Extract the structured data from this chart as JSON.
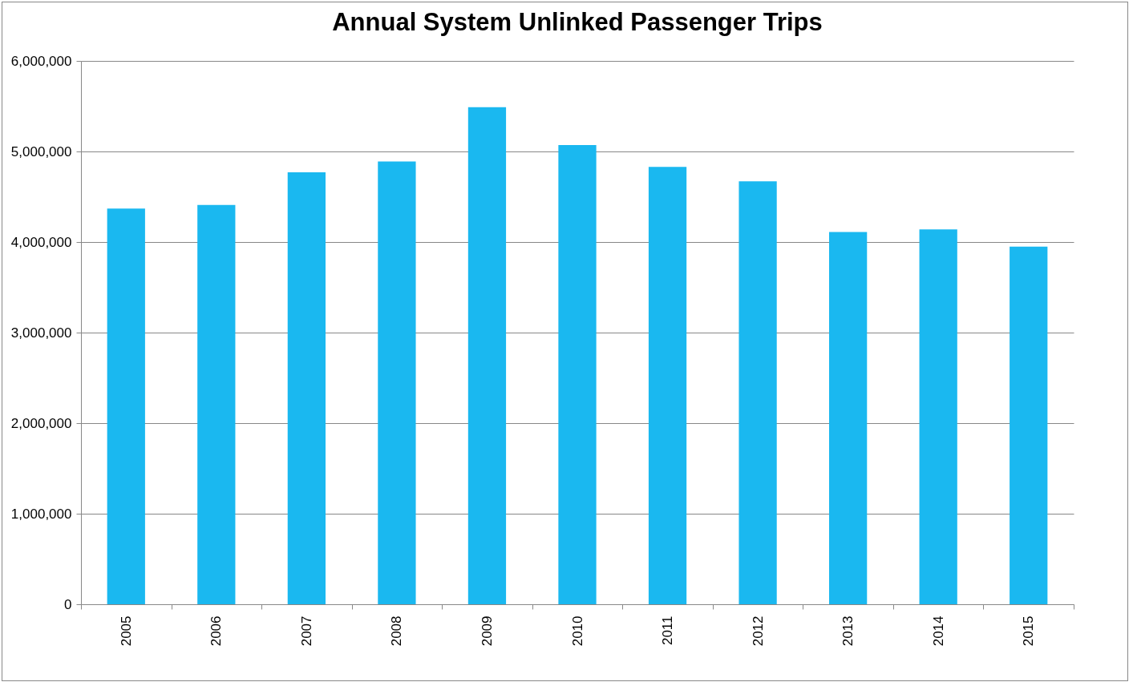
{
  "chart_data": {
    "type": "bar",
    "title": "Annual System Unlinked Passenger Trips",
    "categories": [
      "2005",
      "2006",
      "2007",
      "2008",
      "2009",
      "2010",
      "2011",
      "2012",
      "2013",
      "2014",
      "2015"
    ],
    "values": [
      4370000,
      4410000,
      4770000,
      4890000,
      5490000,
      5070000,
      4830000,
      4670000,
      4110000,
      4140000,
      3950000
    ],
    "color": "#1ab8f0",
    "ylim": [
      0,
      6000000
    ],
    "yticks": [
      {
        "value": 0,
        "label": "0"
      },
      {
        "value": 1000000,
        "label": "1,000,000"
      },
      {
        "value": 2000000,
        "label": "2,000,000"
      },
      {
        "value": 3000000,
        "label": "3,000,000"
      },
      {
        "value": 4000000,
        "label": "4,000,000"
      },
      {
        "value": 5000000,
        "label": "5,000,000"
      },
      {
        "value": 6000000,
        "label": "6,000,000"
      }
    ],
    "grid": "y"
  }
}
